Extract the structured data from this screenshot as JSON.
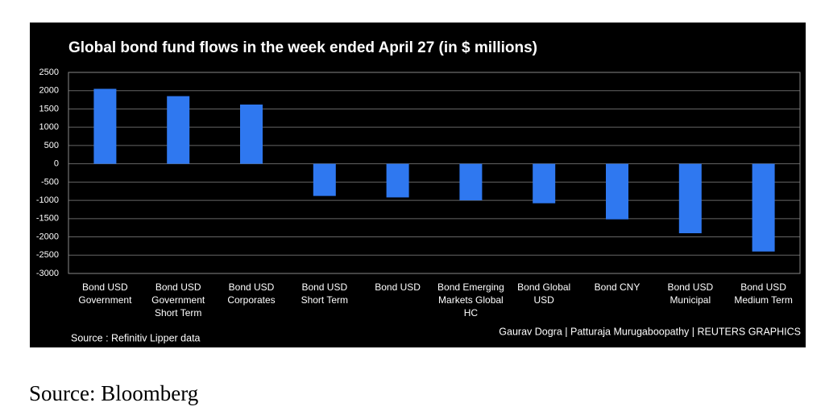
{
  "chart_data": {
    "type": "bar",
    "title": "Global bond fund flows in the week ended April 27 (in $ millions)",
    "categories": [
      "Bond USD Government",
      "Bond USD Government Short Term",
      "Bond USD Corporates",
      "Bond USD Short Term",
      "Bond USD",
      "Bond Emerging Markets Global HC",
      "Bond Global USD",
      "Bond CNY",
      "Bond USD Municipal",
      "Bond USD Medium Term"
    ],
    "values": [
      2050,
      1850,
      1620,
      -880,
      -920,
      -1000,
      -1080,
      -1520,
      -1900,
      -2400
    ],
    "color": "#2f78f0",
    "ylim": [
      -3000,
      2500
    ],
    "yticks": [
      2500,
      2000,
      1500,
      1000,
      500,
      0,
      -500,
      -1000,
      -1500,
      -2000,
      -2500,
      -3000
    ],
    "grid": true,
    "source_left": "Source : Refinitiv Lipper data",
    "credit": "Gaurav Dogra | Patturaja Murugaboopathy | REUTERS GRAPHICS"
  },
  "caption": "Source: Bloomberg"
}
